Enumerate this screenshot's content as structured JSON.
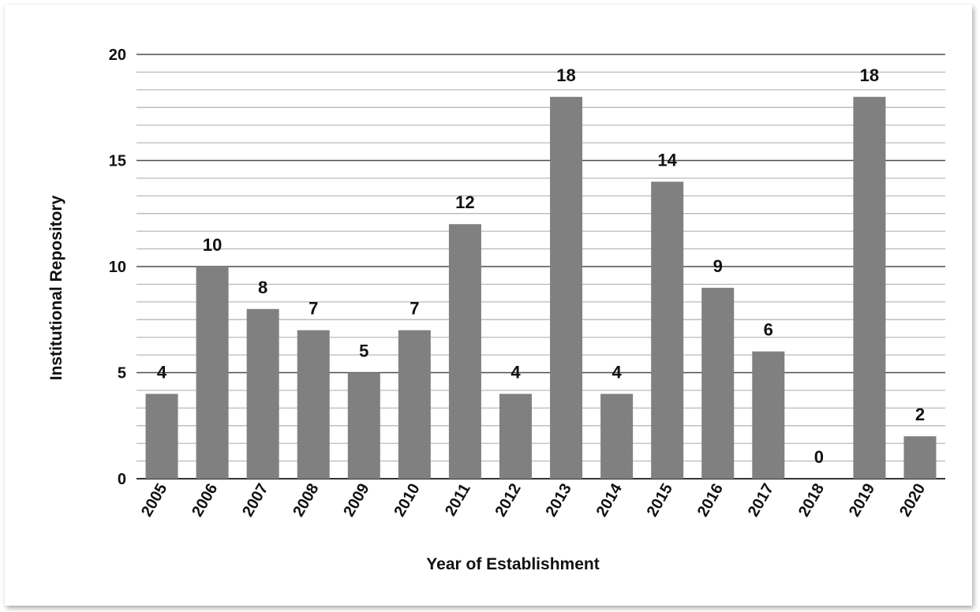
{
  "chart_data": {
    "type": "bar",
    "title": "",
    "xlabel": "Year of Establishment",
    "ylabel": "Institutional Repository",
    "categories": [
      "2005",
      "2006",
      "2007",
      "2008",
      "2009",
      "2010",
      "2011",
      "2012",
      "2013",
      "2014",
      "2015",
      "2016",
      "2017",
      "2018",
      "2019",
      "2020"
    ],
    "values": [
      4,
      10,
      8,
      7,
      5,
      7,
      12,
      4,
      18,
      4,
      14,
      9,
      6,
      0,
      18,
      2
    ],
    "ylim": [
      0,
      20
    ],
    "yticks": [
      0,
      5,
      10,
      15,
      20
    ],
    "minor_gridlines_per_major": 6,
    "grid": true,
    "legend": "none",
    "bar_color": "#808080",
    "major_grid_color": "#4d4d4d",
    "minor_grid_color": "#b3b3b3"
  }
}
